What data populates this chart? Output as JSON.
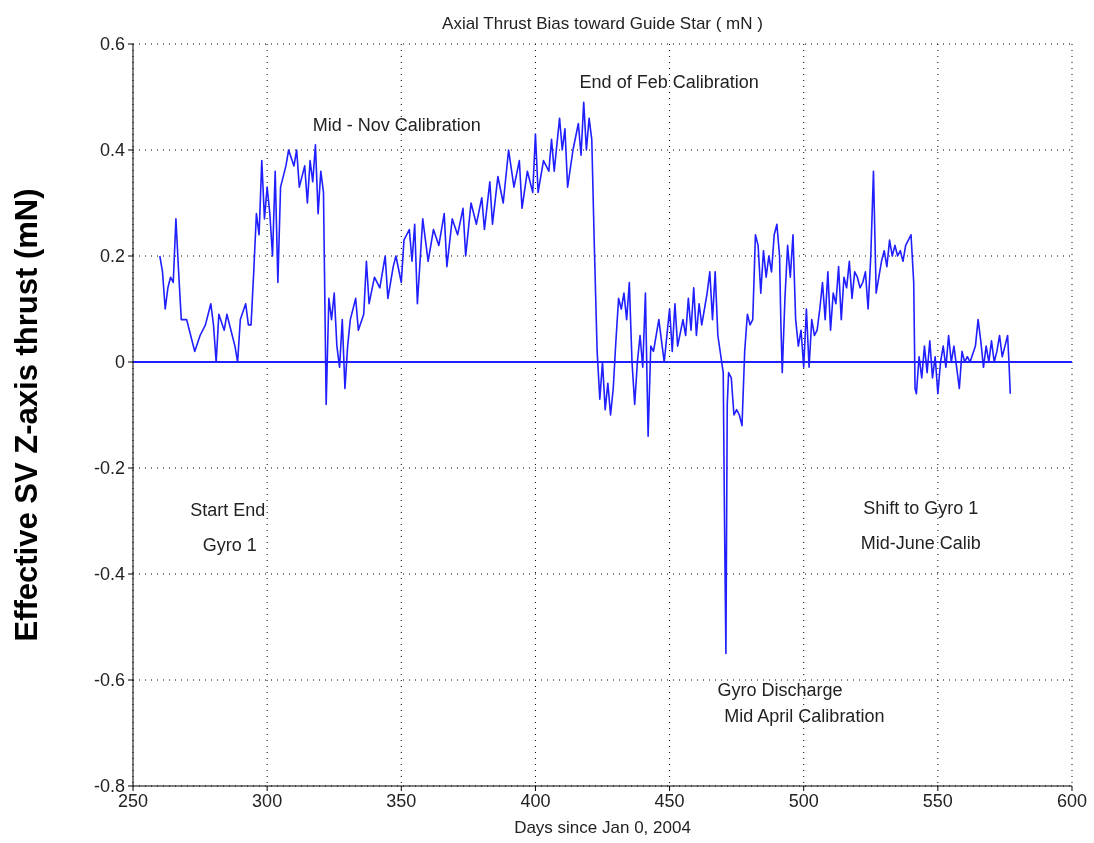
{
  "chart_data": {
    "type": "line",
    "title": "Axial Thrust Bias toward Guide Star ( mN )",
    "xlabel": "Days since Jan 0, 2004",
    "ylabel": "Effective SV Z-axis thrust (mN)",
    "x": [
      260,
      261,
      262,
      263,
      264,
      265,
      266,
      267,
      268,
      270,
      272,
      273,
      275,
      277,
      279,
      280,
      281,
      282,
      284,
      285,
      287,
      288,
      289,
      290,
      292,
      293,
      294,
      295,
      296,
      297,
      298,
      299,
      300,
      301,
      302,
      303,
      304,
      305,
      307,
      308,
      310,
      311,
      312,
      314,
      315,
      316,
      317,
      318,
      319,
      320,
      321,
      322,
      323,
      324,
      325,
      326,
      327,
      328,
      329,
      330,
      331,
      333,
      334,
      336,
      337,
      338,
      340,
      342,
      344,
      345,
      347,
      348,
      350,
      351,
      353,
      354,
      355,
      356,
      358,
      360,
      362,
      364,
      366,
      367,
      369,
      371,
      373,
      374,
      376,
      378,
      380,
      381,
      383,
      384,
      386,
      388,
      390,
      392,
      394,
      395,
      397,
      399,
      400,
      401,
      403,
      405,
      406,
      407,
      409,
      410,
      411,
      412,
      414,
      416,
      417,
      418,
      419,
      420,
      421,
      422,
      423,
      424,
      425,
      426,
      427,
      428,
      429,
      430,
      431,
      432,
      433,
      434,
      435,
      436,
      437,
      438,
      439,
      440,
      441,
      442,
      443,
      444,
      446,
      447,
      448,
      449,
      450,
      451,
      452,
      453,
      455,
      456,
      457,
      458,
      459,
      460,
      461,
      462,
      463,
      464,
      465,
      466,
      467,
      468,
      470,
      470.5,
      471,
      471.5,
      472,
      473,
      474,
      475,
      476,
      477,
      478,
      479,
      480,
      481,
      482,
      483,
      484,
      485,
      486,
      487,
      488,
      489,
      490,
      491,
      491.5,
      492,
      493,
      494,
      495,
      496,
      497,
      498,
      499,
      500,
      501,
      502,
      503,
      504,
      505,
      506,
      507,
      508,
      509,
      510,
      511,
      512,
      513,
      514,
      515,
      516,
      517,
      518,
      519,
      520,
      521,
      522,
      523,
      524,
      525,
      526,
      527,
      528,
      529,
      530,
      531,
      532,
      533,
      534,
      535,
      536,
      537,
      538,
      539,
      540,
      541,
      541.5,
      542,
      543,
      544,
      545,
      546,
      547,
      548,
      549,
      550,
      551,
      552,
      553,
      554,
      555,
      556,
      557,
      558,
      559,
      560,
      561,
      562,
      564,
      565,
      566,
      567,
      568,
      569,
      570,
      571,
      572,
      573,
      574,
      575,
      576,
      576.5,
      577
    ],
    "series": [
      {
        "color": "#1f1fff",
        "values": [
          0.2,
          0.17,
          0.1,
          0.14,
          0.16,
          0.15,
          0.27,
          0.17,
          0.08,
          0.08,
          0.04,
          0.02,
          0.05,
          0.07,
          0.11,
          0.07,
          0.0,
          0.09,
          0.06,
          0.09,
          0.05,
          0.03,
          0.0,
          0.08,
          0.11,
          0.07,
          0.07,
          0.17,
          0.28,
          0.24,
          0.38,
          0.27,
          0.33,
          0.28,
          0.2,
          0.36,
          0.15,
          0.33,
          0.37,
          0.4,
          0.37,
          0.4,
          0.33,
          0.37,
          0.3,
          0.38,
          0.34,
          0.41,
          0.28,
          0.36,
          0.32,
          -0.08,
          0.12,
          0.08,
          0.13,
          0.03,
          -0.01,
          0.08,
          -0.05,
          0.03,
          0.08,
          0.12,
          0.06,
          0.09,
          0.19,
          0.11,
          0.16,
          0.14,
          0.2,
          0.12,
          0.18,
          0.2,
          0.15,
          0.23,
          0.25,
          0.19,
          0.26,
          0.11,
          0.27,
          0.19,
          0.25,
          0.22,
          0.28,
          0.18,
          0.27,
          0.24,
          0.29,
          0.2,
          0.3,
          0.26,
          0.31,
          0.25,
          0.34,
          0.26,
          0.35,
          0.3,
          0.4,
          0.33,
          0.38,
          0.29,
          0.36,
          0.32,
          0.43,
          0.32,
          0.38,
          0.36,
          0.42,
          0.36,
          0.46,
          0.4,
          0.44,
          0.33,
          0.4,
          0.45,
          0.39,
          0.49,
          0.4,
          0.46,
          0.42,
          0.21,
          0.02,
          -0.07,
          0.0,
          -0.09,
          -0.04,
          -0.1,
          -0.05,
          0.04,
          0.12,
          0.1,
          0.13,
          0.08,
          0.15,
          0.0,
          -0.08,
          0.0,
          0.05,
          -0.01,
          0.13,
          -0.14,
          0.03,
          0.02,
          0.08,
          0.04,
          0.0,
          0.05,
          0.1,
          0.02,
          0.11,
          0.03,
          0.08,
          0.05,
          0.12,
          0.06,
          0.14,
          0.05,
          0.11,
          0.07,
          0.1,
          0.13,
          0.17,
          0.08,
          0.17,
          0.05,
          -0.02,
          -0.31,
          -0.55,
          -0.08,
          -0.02,
          -0.03,
          -0.1,
          -0.09,
          -0.1,
          -0.12,
          0.02,
          0.09,
          0.07,
          0.08,
          0.24,
          0.22,
          0.13,
          0.21,
          0.16,
          0.2,
          0.17,
          0.24,
          0.26,
          0.2,
          0.07,
          -0.02,
          0.12,
          0.22,
          0.16,
          0.24,
          0.08,
          0.03,
          0.06,
          -0.01,
          0.1,
          -0.01,
          0.08,
          0.05,
          0.06,
          0.1,
          0.15,
          0.08,
          0.17,
          0.06,
          0.13,
          0.11,
          0.18,
          0.08,
          0.16,
          0.14,
          0.19,
          0.12,
          0.17,
          0.16,
          0.14,
          0.15,
          0.17,
          0.1,
          0.2,
          0.36,
          0.13,
          0.16,
          0.19,
          0.21,
          0.18,
          0.23,
          0.2,
          0.22,
          0.2,
          0.21,
          0.19,
          0.22,
          0.23,
          0.24,
          0.15,
          -0.05,
          -0.06,
          0.01,
          -0.03,
          0.03,
          -0.02,
          0.04,
          -0.03,
          0.01,
          -0.06,
          0.0,
          0.03,
          -0.01,
          0.05,
          0.0,
          0.03,
          -0.01,
          -0.05,
          0.02,
          0.0,
          0.01,
          0.0,
          0.03,
          0.08,
          0.04,
          -0.01,
          0.03,
          0.0,
          0.04,
          0.0,
          0.02,
          0.05,
          0.01,
          0.03,
          0.05,
          0.0,
          -0.06
        ]
      }
    ],
    "xlim": [
      250,
      600
    ],
    "xticks": [
      250,
      300,
      350,
      400,
      450,
      500,
      550,
      600
    ],
    "ylim": [
      -0.8,
      0.6
    ],
    "yticks": [
      -0.8,
      -0.6,
      -0.4,
      -0.2,
      0,
      0.2,
      0.4,
      0.6
    ],
    "grid": true,
    "marker": "none",
    "line_style": "solid",
    "ref_lines": [
      {
        "axis": "y",
        "value": 0,
        "color": "#1f1fff",
        "line_style": "solid"
      }
    ],
    "annotations": [
      "Mid - Nov Calibration",
      "End of Feb Calibration",
      "Start End",
      "Gyro 1",
      "Gyro Discharge",
      "Mid April Calibration",
      "Shift to Gyro 1",
      "Mid-June Calib"
    ]
  }
}
